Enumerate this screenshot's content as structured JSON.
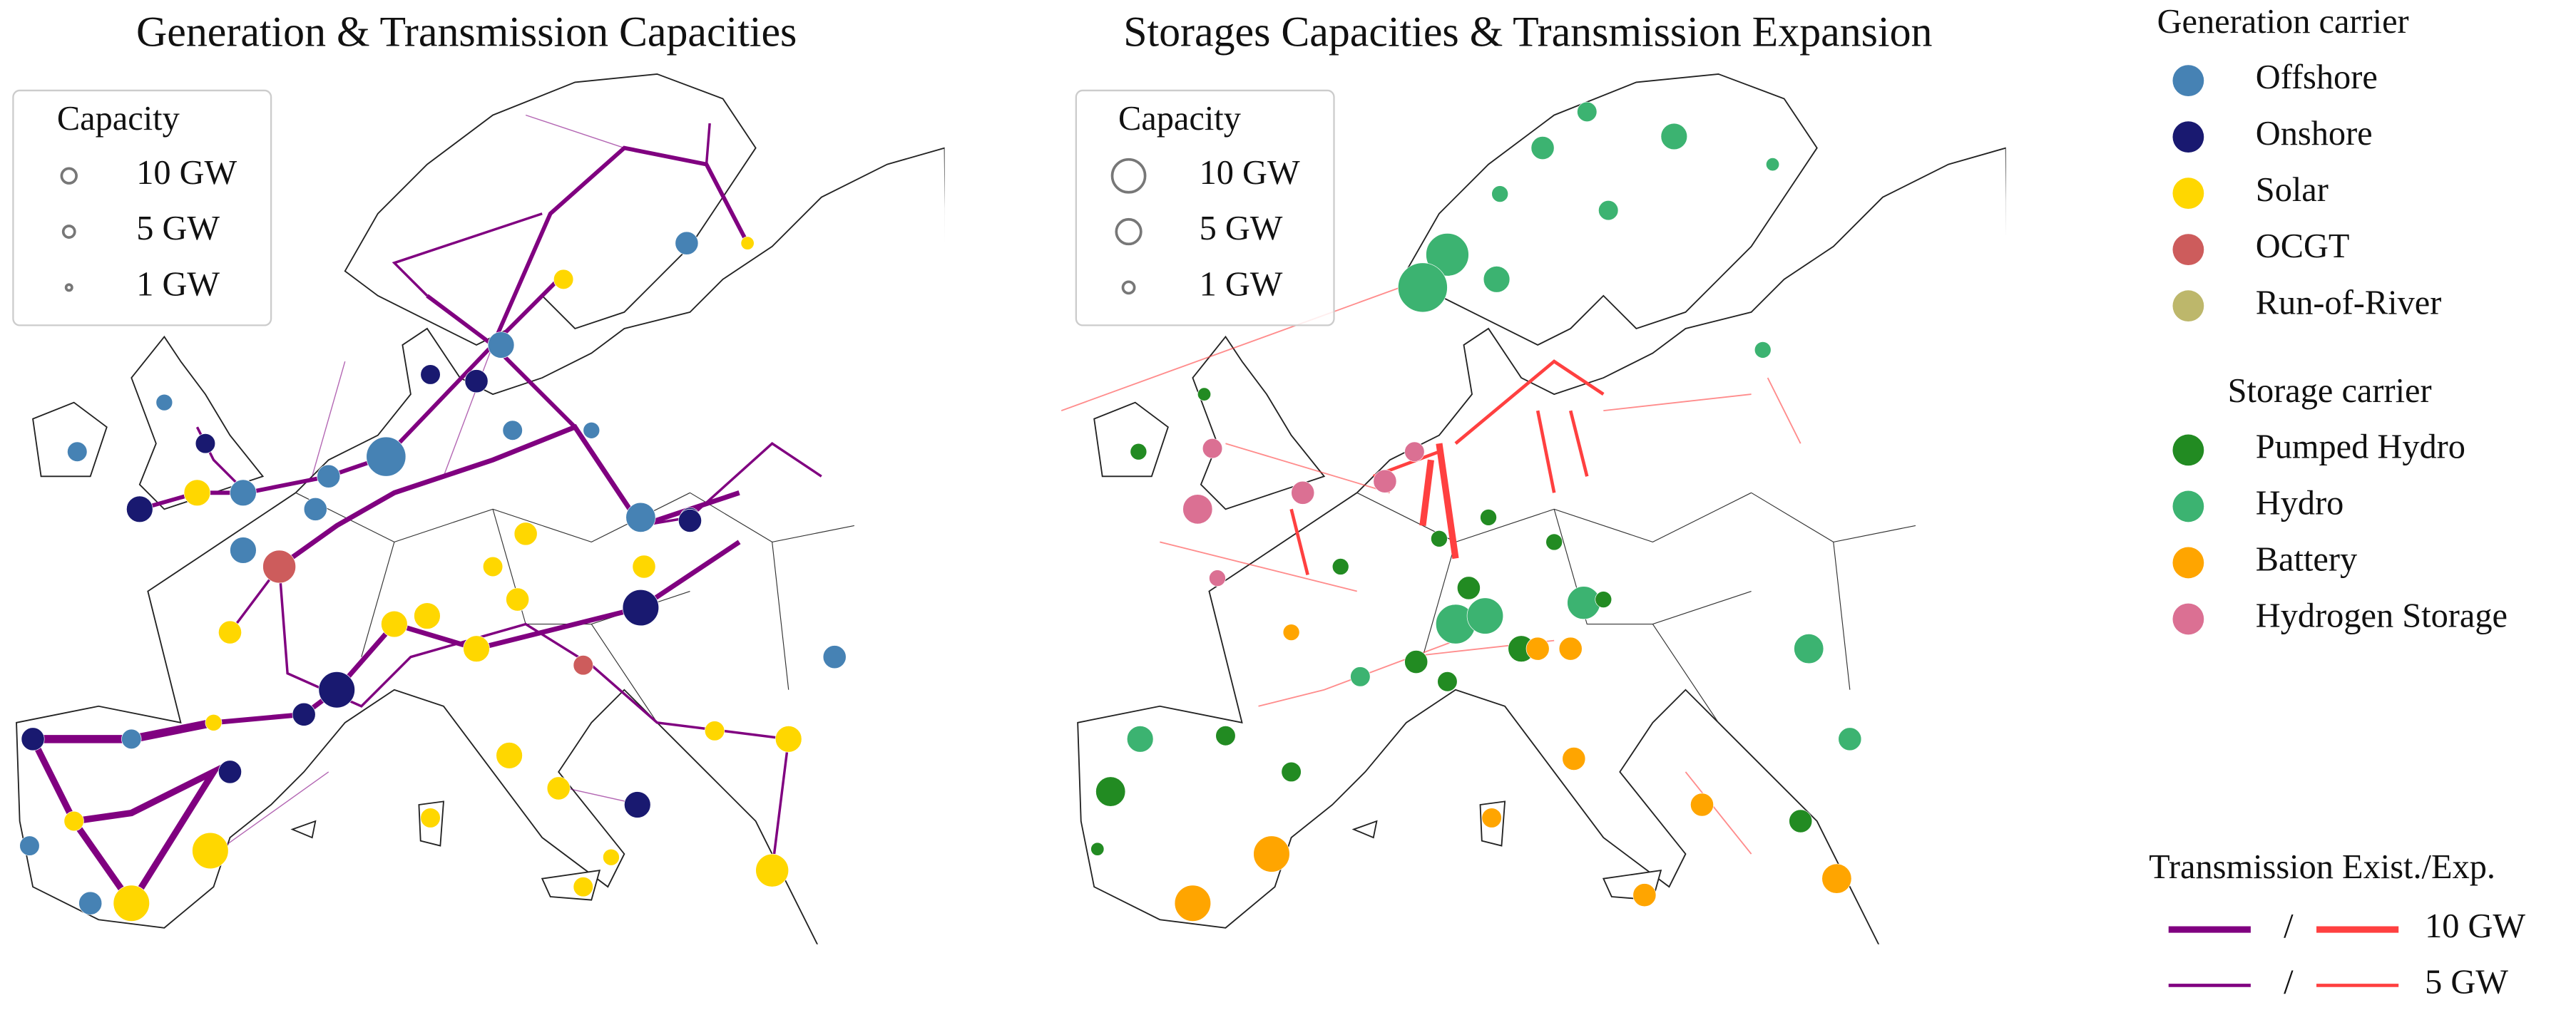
{
  "left_map": {
    "title": "Generation & Transmission Capacities",
    "legend": {
      "title": "Capacity",
      "entries": [
        "10 GW",
        "5 GW",
        "1 GW"
      ]
    }
  },
  "right_map": {
    "title": "Storages Capacities & Transmission Expansion",
    "legend": {
      "title": "Capacity",
      "entries": [
        "10 GW",
        "5 GW",
        "1 GW"
      ]
    }
  },
  "generation_legend": {
    "title": "Generation carrier",
    "entries": [
      {
        "label": "Offshore",
        "color": "#4682b4"
      },
      {
        "label": "Onshore",
        "color": "#191970"
      },
      {
        "label": "Solar",
        "color": "#ffd700"
      },
      {
        "label": "OCGT",
        "color": "#cd5c5c"
      },
      {
        "label": "Run-of-River",
        "color": "#bdb76b"
      }
    ]
  },
  "storage_legend": {
    "title": "Storage carrier",
    "entries": [
      {
        "label": "Pumped Hydro",
        "color": "#228b22"
      },
      {
        "label": "Hydro",
        "color": "#3cb371"
      },
      {
        "label": "Battery",
        "color": "#ffa500"
      },
      {
        "label": "Hydrogen Storage",
        "color": "#db7093"
      }
    ]
  },
  "transmission_legend": {
    "title": "Transmission Exist./Exp.",
    "existing_color": "#800080",
    "expansion_color": "#ff4040",
    "entries": [
      {
        "separator": "/",
        "label": "10 GW"
      },
      {
        "separator": "/",
        "label": "5 GW"
      }
    ]
  }
}
